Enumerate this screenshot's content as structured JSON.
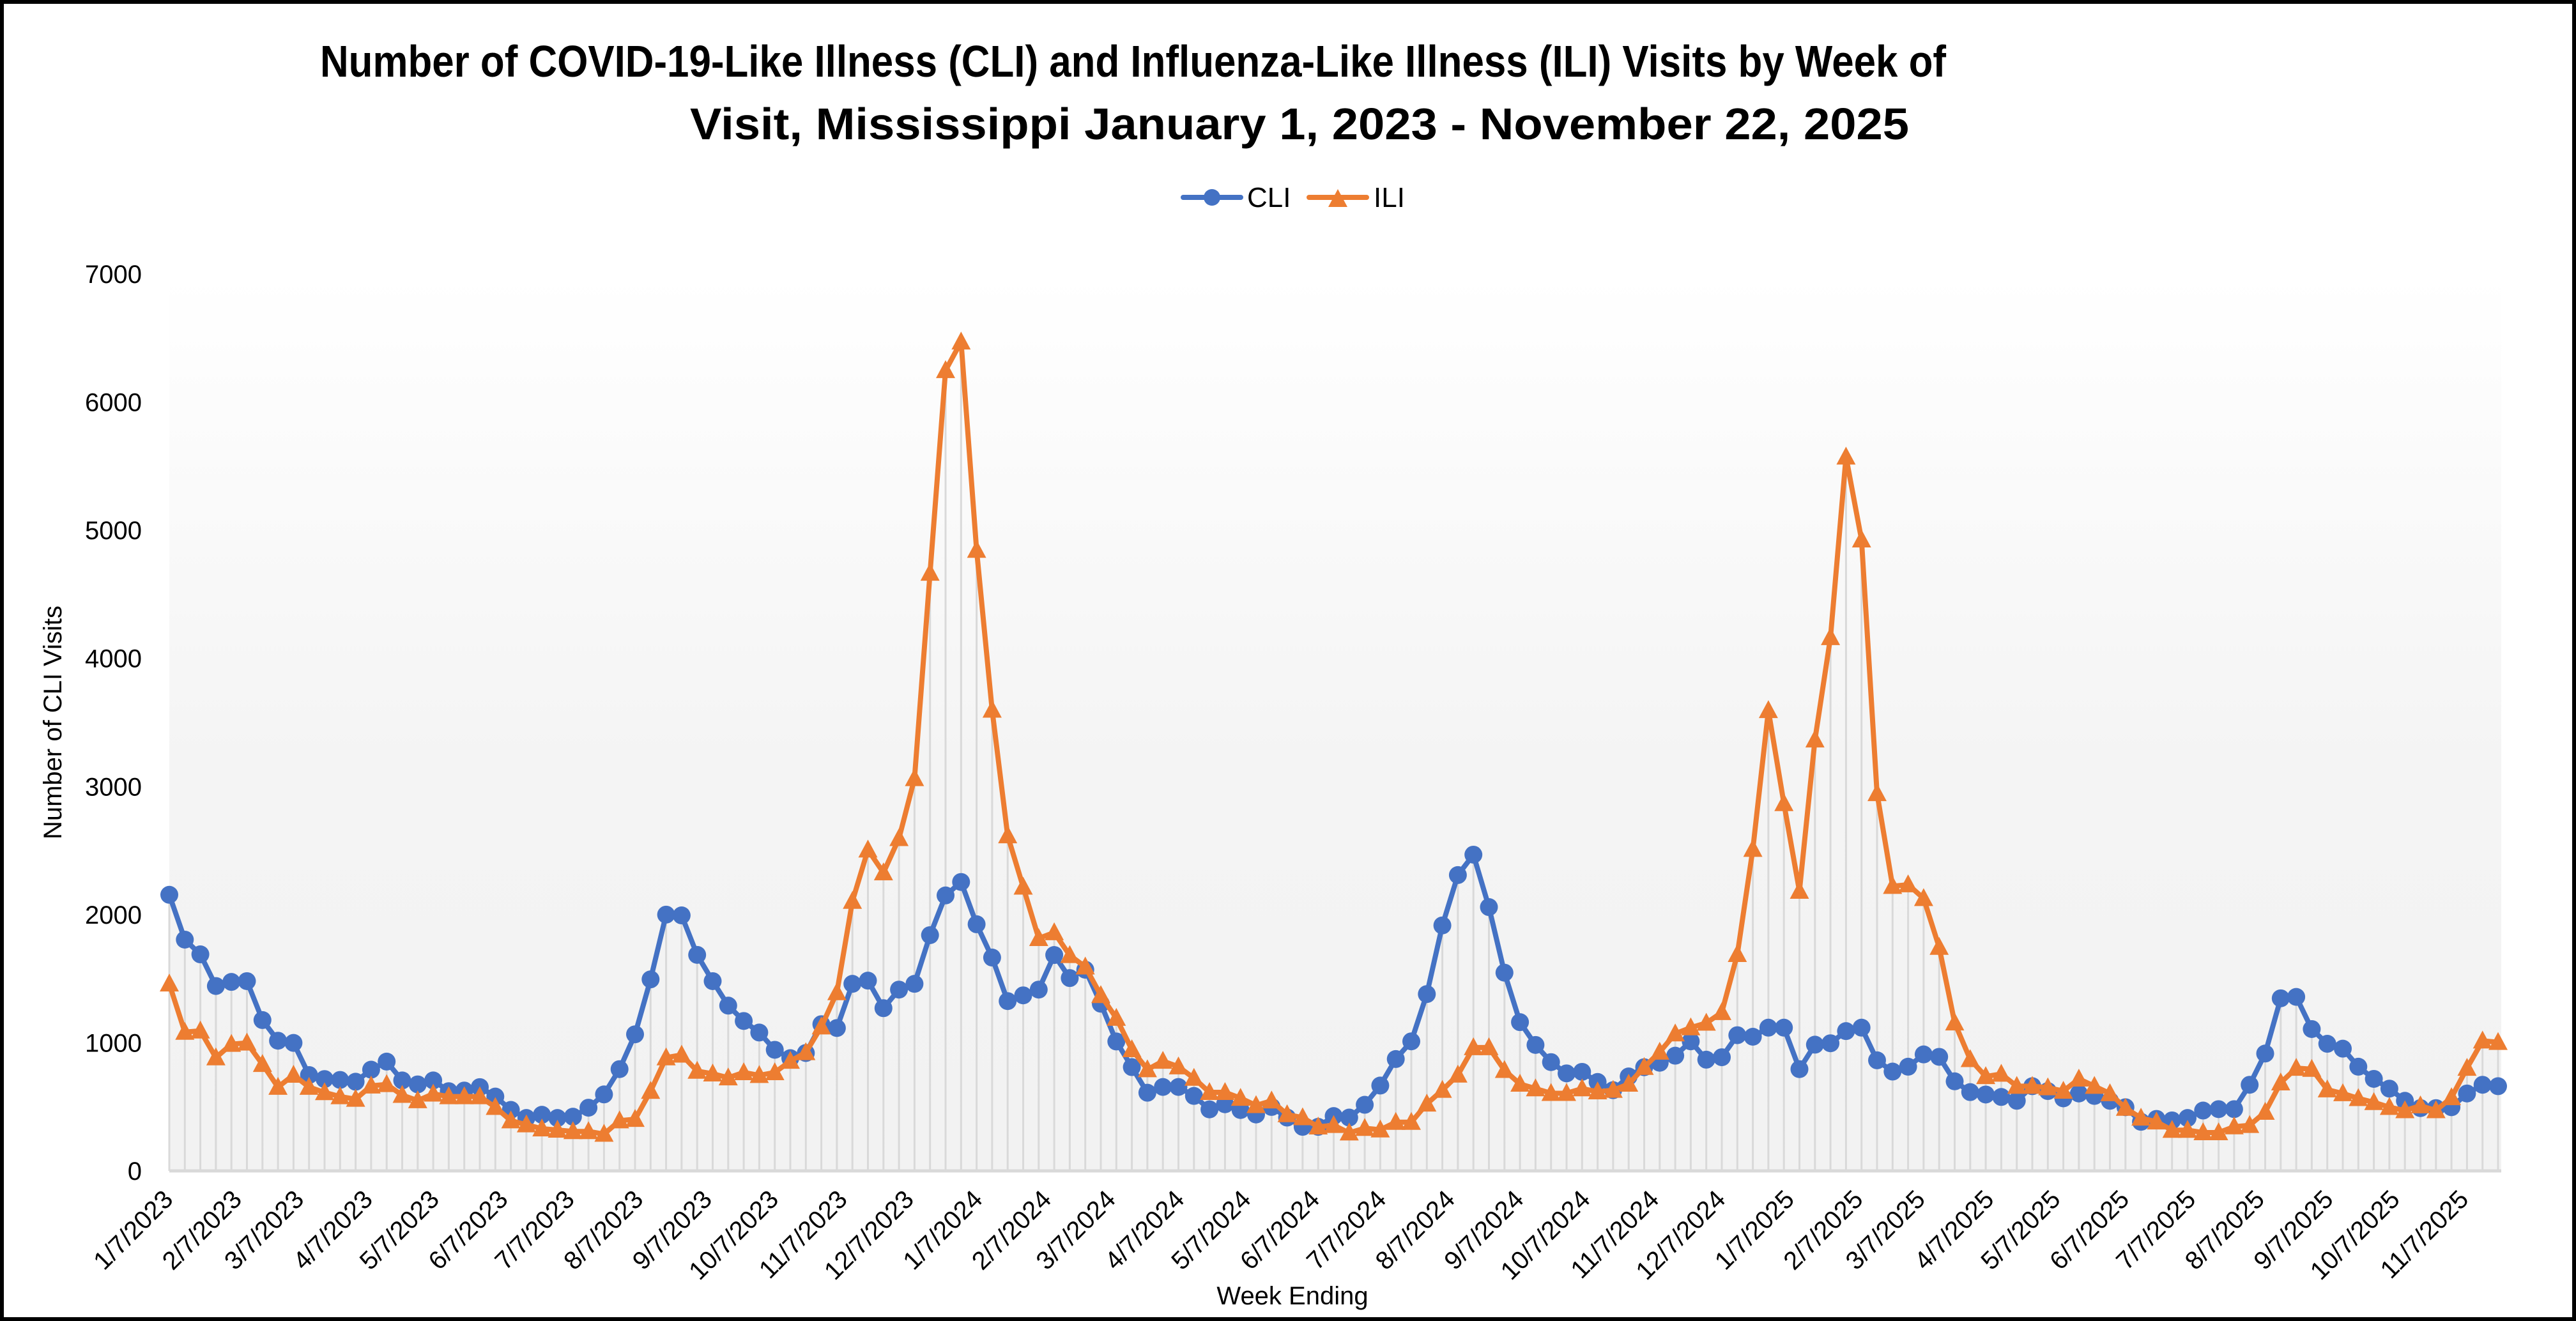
{
  "chart_data": {
    "type": "line",
    "title_lines": [
      "Number of COVID-19-Like Illness (CLI) and Influenza-Like Illness (ILI) Visits by Week of",
      "Visit, Mississippi January 1, 2023 - November 22, 2025"
    ],
    "xlabel": "Week Ending",
    "ylabel": "Number of CLI Visits",
    "ylim": [
      0,
      7000
    ],
    "y_ticks": [
      0,
      1000,
      2000,
      3000,
      4000,
      5000,
      6000,
      7000
    ],
    "x_tick_labels": [
      "1/7/2023",
      "2/7/2023",
      "3/7/2023",
      "4/7/2023",
      "5/7/2023",
      "6/7/2023",
      "7/7/2023",
      "8/7/2023",
      "9/7/2023",
      "10/7/2023",
      "11/7/2023",
      "12/7/2023",
      "1/7/2024",
      "2/7/2024",
      "3/7/2024",
      "4/7/2024",
      "5/7/2024",
      "6/7/2024",
      "7/7/2024",
      "8/7/2024",
      "9/7/2024",
      "10/7/2024",
      "11/7/2024",
      "12/7/2024",
      "1/7/2025",
      "2/7/2025",
      "3/7/2025",
      "4/7/2025",
      "5/7/2025",
      "6/7/2025",
      "7/7/2025",
      "8/7/2025",
      "9/7/2025",
      "10/7/2025",
      "11/7/2025"
    ],
    "grid": "vertical drop lines",
    "legend_position": "top",
    "x": [
      "1/7/2023",
      "1/14/2023",
      "1/21/2023",
      "1/28/2023",
      "2/4/2023",
      "2/11/2023",
      "2/18/2023",
      "2/25/2023",
      "3/4/2023",
      "3/11/2023",
      "3/18/2023",
      "3/25/2023",
      "4/1/2023",
      "4/8/2023",
      "4/15/2023",
      "4/22/2023",
      "4/29/2023",
      "5/6/2023",
      "5/13/2023",
      "5/20/2023",
      "5/27/2023",
      "6/3/2023",
      "6/10/2023",
      "6/17/2023",
      "6/24/2023",
      "7/1/2023",
      "7/8/2023",
      "7/15/2023",
      "7/22/2023",
      "7/29/2023",
      "8/5/2023",
      "8/12/2023",
      "8/19/2023",
      "8/26/2023",
      "9/2/2023",
      "9/9/2023",
      "9/16/2023",
      "9/23/2023",
      "9/30/2023",
      "10/7/2023",
      "10/14/2023",
      "10/21/2023",
      "10/28/2023",
      "11/4/2023",
      "11/11/2023",
      "11/18/2023",
      "11/25/2023",
      "12/2/2023",
      "12/9/2023",
      "12/16/2023",
      "12/23/2023",
      "12/30/2023",
      "1/6/2024",
      "1/13/2024",
      "1/20/2024",
      "1/27/2024",
      "2/3/2024",
      "2/10/2024",
      "2/17/2024",
      "2/24/2024",
      "3/2/2024",
      "3/9/2024",
      "3/16/2024",
      "3/23/2024",
      "3/30/2024",
      "4/6/2024",
      "4/13/2024",
      "4/20/2024",
      "4/27/2024",
      "5/4/2024",
      "5/11/2024",
      "5/18/2024",
      "5/25/2024",
      "6/1/2024",
      "6/8/2024",
      "6/15/2024",
      "6/22/2024",
      "6/29/2024",
      "7/6/2024",
      "7/13/2024",
      "7/20/2024",
      "7/27/2024",
      "8/3/2024",
      "8/10/2024",
      "8/17/2024",
      "8/24/2024",
      "8/31/2024",
      "9/7/2024",
      "9/14/2024",
      "9/21/2024",
      "9/28/2024",
      "10/5/2024",
      "10/12/2024",
      "10/19/2024",
      "10/26/2024",
      "11/2/2024",
      "11/9/2024",
      "11/16/2024",
      "11/23/2024",
      "11/30/2024",
      "12/7/2024",
      "12/14/2024",
      "12/21/2024",
      "12/28/2024",
      "1/4/2025",
      "1/11/2025",
      "1/18/2025",
      "1/25/2025",
      "2/1/2025",
      "2/8/2025",
      "2/15/2025",
      "2/22/2025",
      "3/1/2025",
      "3/8/2025",
      "3/15/2025",
      "3/22/2025",
      "3/29/2025",
      "4/5/2025",
      "4/12/2025",
      "4/19/2025",
      "4/26/2025",
      "5/3/2025",
      "5/10/2025",
      "5/17/2025",
      "5/24/2025",
      "5/31/2025",
      "6/7/2025",
      "6/14/2025",
      "6/21/2025",
      "6/28/2025",
      "7/5/2025",
      "7/12/2025",
      "7/19/2025",
      "7/26/2025",
      "8/2/2025",
      "8/9/2025",
      "8/16/2025",
      "8/23/2025",
      "8/30/2025",
      "9/6/2025",
      "9/13/2025",
      "9/20/2025",
      "9/27/2025",
      "10/4/2025",
      "10/11/2025",
      "10/18/2025",
      "10/25/2025",
      "11/1/2025",
      "11/8/2025",
      "11/15/2025",
      "11/22/2025"
    ],
    "series": [
      {
        "name": "CLI",
        "color": "#4472C4",
        "marker": "circle",
        "values": [
          2155,
          1805,
          1690,
          1443,
          1475,
          1481,
          1177,
          1016,
          999,
          748,
          717,
          710,
          696,
          790,
          853,
          706,
          675,
          706,
          622,
          627,
          654,
          580,
          476,
          413,
          438,
          413,
          423,
          493,
          597,
          794,
          1066,
          1495,
          2000,
          1994,
          1686,
          1481,
          1290,
          1170,
          1080,
          945,
          880,
          920,
          1145,
          1115,
          1460,
          1485,
          1270,
          1415,
          1460,
          1840,
          2150,
          2255,
          1925,
          1665,
          1325,
          1370,
          1415,
          1685,
          1505,
          1570,
          1305,
          1010,
          810,
          610,
          655,
          655,
          585,
          480,
          520,
          475,
          440,
          499,
          416,
          344,
          344,
          428,
          416,
          516,
          666,
          873,
          1011,
          1380,
          1916,
          2309,
          2468,
          2059,
          1547,
          1161,
          983,
          849,
          761,
          773,
          694,
          630,
          737,
          809,
          844,
          899,
          1011,
          868,
          887,
          1059,
          1047,
          1118,
          1118,
          794,
          985,
          996,
          1091,
          1118,
          863,
          775,
          813,
          909,
          890,
          699,
          615,
          596,
          577,
          547,
          661,
          623,
          566,
          604,
          585,
          547,
          497,
          383,
          406,
          394,
          413,
          471,
          482,
          482,
          672,
          916,
          1347,
          1358,
          1107,
          992,
          954,
          813,
          718,
          642,
          547,
          490,
          490,
          497,
          604,
          672,
          661
        ]
      },
      {
        "name": "ILI",
        "color": "#ED7D31",
        "marker": "triangle",
        "values": [
          1460,
          1083,
          1093,
          884,
          989,
          999,
          832,
          654,
          748,
          654,
          612,
          580,
          560,
          664,
          675,
          591,
          549,
          601,
          580,
          580,
          580,
          497,
          392,
          361,
          329,
          319,
          308,
          308,
          287,
          392,
          403,
          622,
          884,
          905,
          779,
          758,
          727,
          768,
          746,
          768,
          857,
          924,
          1125,
          1392,
          2105,
          2506,
          2328,
          2595,
          3063,
          4666,
          6248,
          6471,
          4845,
          3597,
          2617,
          2216,
          1815,
          1860,
          1682,
          1593,
          1370,
          1192,
          947,
          791,
          857,
          813,
          724,
          613,
          613,
          568,
          511,
          547,
          440,
          416,
          344,
          356,
          297,
          333,
          321,
          380,
          380,
          523,
          630,
          749,
          963,
          963,
          785,
          678,
          642,
          606,
          606,
          642,
          618,
          630,
          678,
          809,
          928,
          1071,
          1118,
          1154,
          1237,
          1690,
          2511,
          3594,
          2868,
          2184,
          3365,
          4164,
          5573,
          4926,
          2946,
          2222,
          2234,
          2127,
          1746,
          1156,
          870,
          737,
          756,
          661,
          661,
          650,
          623,
          718,
          661,
          604,
          490,
          413,
          383,
          318,
          318,
          299,
          299,
          345,
          356,
          459,
          688,
          802,
          794,
          634,
          604,
          566,
          535,
          497,
          471,
          509,
          471,
          573,
          802,
          1015,
          1004
        ]
      }
    ]
  },
  "colors": {
    "cli": "#4472C4",
    "ili": "#ED7D31",
    "drop_line": "#D9D9D9",
    "plot_bg_bottom": "#F2F2F2",
    "border": "#000000"
  }
}
